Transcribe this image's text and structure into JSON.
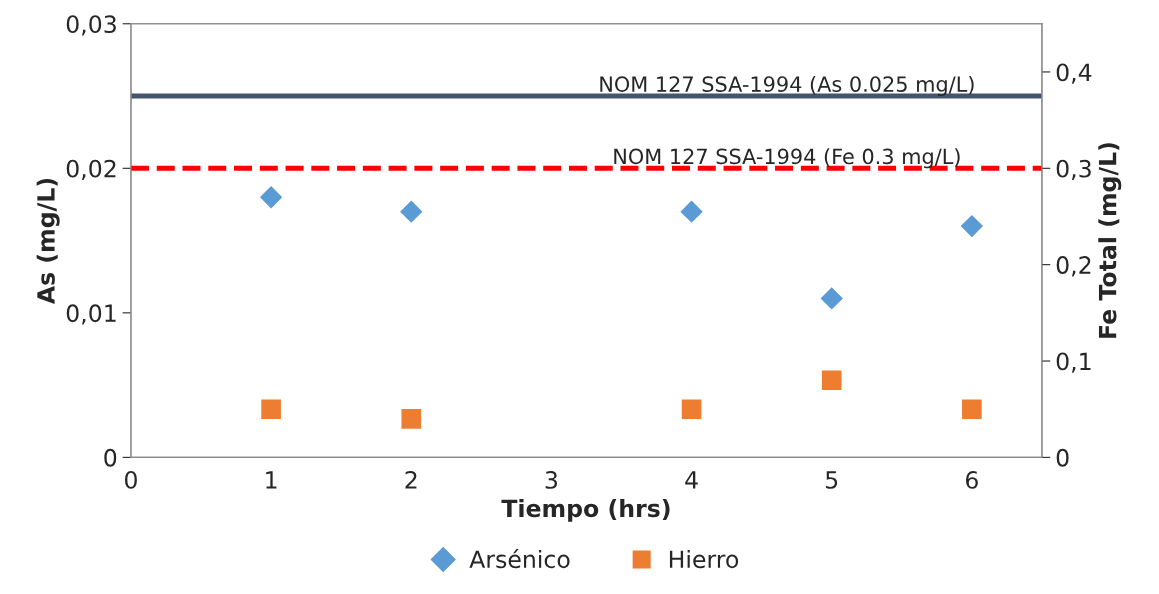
{
  "chart_data": {
    "type": "scatter",
    "xlabel": "Tiempo (hrs)",
    "ylabel": "As (mg/L)",
    "y2label": "Fe Total (mg/L)",
    "xlim": [
      0,
      6.5
    ],
    "xticks": [
      0,
      1,
      2,
      3,
      4,
      5,
      6
    ],
    "ylim": [
      0,
      0.03
    ],
    "yticks": [
      0,
      {
        "value": 0.01,
        "label": "0,01"
      },
      {
        "value": 0.02,
        "label": "0,02"
      },
      {
        "value": 0.03,
        "label": "0,03"
      }
    ],
    "y2lim": [
      0,
      0.45
    ],
    "y2ticks": [
      0,
      {
        "value": 0.1,
        "label": "0,1"
      },
      {
        "value": 0.2,
        "label": "0,2"
      },
      {
        "value": 0.3,
        "label": "0,3"
      },
      {
        "value": 0.4,
        "label": "0,4"
      }
    ],
    "x": [
      1,
      2,
      4,
      5,
      6
    ],
    "series": [
      {
        "name": "Arsénico",
        "color": "#5b9bd5",
        "marker": "diamond",
        "values": [
          0.018,
          0.017,
          0.017,
          0.011,
          0.016
        ]
      },
      {
        "name": "Hierro",
        "color": "#ed7d31",
        "marker": "square",
        "axis": "y2",
        "values": [
          0.05,
          0.04,
          0.05,
          0.08,
          0.05
        ]
      }
    ],
    "ref_lines": [
      {
        "axis": "y",
        "value": 0.025,
        "label": "NOM 127 SSA-1994 (As 0.025 mg/L)",
        "color": "#44546a",
        "line_style": "solid"
      },
      {
        "axis": "y2",
        "value": 0.3,
        "label": "NOM 127 SSA-1994 (Fe 0.3 mg/L)",
        "color": "#ff0000",
        "line_style": "dashed"
      }
    ],
    "legend": "bottom",
    "grid": false
  }
}
